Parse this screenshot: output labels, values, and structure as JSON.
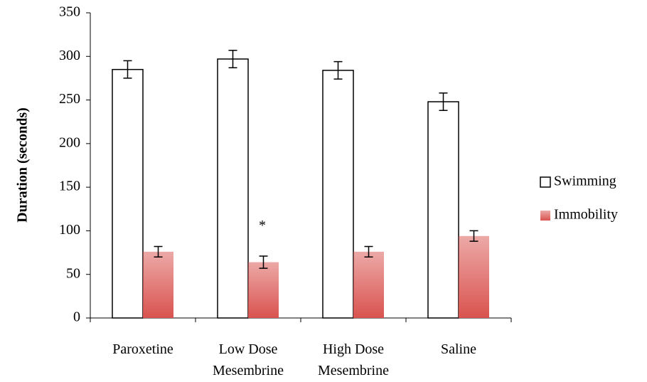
{
  "chart_data": {
    "type": "bar",
    "y_label": "Duration (seconds)",
    "categories": [
      "Paroxetine",
      "Low Dose Mesembrine",
      "High Dose Mesembrine",
      "Saline"
    ],
    "series": [
      {
        "name": "Swimming",
        "color": "#ffffff",
        "values": [
          285,
          297,
          284,
          248
        ],
        "errors": [
          10,
          10,
          10,
          10
        ]
      },
      {
        "name": "Immobility",
        "color": "#d9534f",
        "values": [
          76,
          64,
          76,
          94
        ],
        "errors": [
          6,
          7,
          6,
          6
        ]
      }
    ],
    "annotations": [
      {
        "text": "*",
        "category": 1,
        "y": 108
      }
    ],
    "ylim": [
      0,
      350
    ],
    "yticks": [
      0,
      50,
      100,
      150,
      200,
      250,
      300,
      350
    ],
    "grid": false,
    "legend": "right"
  }
}
